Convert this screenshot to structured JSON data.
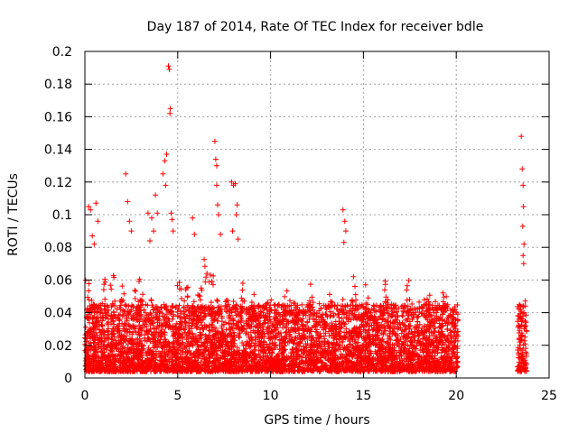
{
  "chart_data": {
    "type": "scatter",
    "title": "Day 187 of 2014, Rate Of TEC Index for receiver bdle",
    "xlabel": "GPS time / hours",
    "ylabel": "ROTI / TECUs",
    "xlim": [
      0,
      25
    ],
    "ylim": [
      0,
      0.2
    ],
    "xticks": [
      "0",
      "5",
      "10",
      "15",
      "20",
      "25"
    ],
    "yticks": [
      "0",
      "0.02",
      "0.04",
      "0.06",
      "0.08",
      "0.1",
      "0.12",
      "0.14",
      "0.16",
      "0.18",
      "0.2"
    ],
    "grid": true,
    "marker": "+",
    "color": "#ff0000",
    "series": [
      {
        "name": "ROTI",
        "coverage_hours": [
          [
            0,
            20.1
          ],
          [
            23.3,
            23.8
          ]
        ],
        "typical_range": [
          0.0,
          0.045
        ],
        "peaks": [
          {
            "x": 0.2,
            "y": 0.105
          },
          {
            "x": 0.3,
            "y": 0.103
          },
          {
            "x": 0.6,
            "y": 0.107
          },
          {
            "x": 0.7,
            "y": 0.096
          },
          {
            "x": 0.4,
            "y": 0.087
          },
          {
            "x": 0.5,
            "y": 0.082
          },
          {
            "x": 2.2,
            "y": 0.125
          },
          {
            "x": 2.3,
            "y": 0.108
          },
          {
            "x": 2.4,
            "y": 0.096
          },
          {
            "x": 2.5,
            "y": 0.09
          },
          {
            "x": 3.4,
            "y": 0.101
          },
          {
            "x": 3.6,
            "y": 0.098
          },
          {
            "x": 3.5,
            "y": 0.084
          },
          {
            "x": 3.8,
            "y": 0.112
          },
          {
            "x": 3.9,
            "y": 0.101
          },
          {
            "x": 3.7,
            "y": 0.09
          },
          {
            "x": 4.2,
            "y": 0.125
          },
          {
            "x": 4.3,
            "y": 0.133
          },
          {
            "x": 4.4,
            "y": 0.137
          },
          {
            "x": 4.35,
            "y": 0.118
          },
          {
            "x": 4.5,
            "y": 0.191
          },
          {
            "x": 4.55,
            "y": 0.189
          },
          {
            "x": 4.6,
            "y": 0.165
          },
          {
            "x": 4.58,
            "y": 0.162
          },
          {
            "x": 4.65,
            "y": 0.101
          },
          {
            "x": 4.7,
            "y": 0.097
          },
          {
            "x": 4.75,
            "y": 0.09
          },
          {
            "x": 5.8,
            "y": 0.098
          },
          {
            "x": 5.9,
            "y": 0.088
          },
          {
            "x": 7.0,
            "y": 0.145
          },
          {
            "x": 7.05,
            "y": 0.134
          },
          {
            "x": 7.1,
            "y": 0.13
          },
          {
            "x": 7.1,
            "y": 0.118
          },
          {
            "x": 7.15,
            "y": 0.106
          },
          {
            "x": 7.2,
            "y": 0.1
          },
          {
            "x": 7.3,
            "y": 0.088
          },
          {
            "x": 7.9,
            "y": 0.12
          },
          {
            "x": 8.0,
            "y": 0.118
          },
          {
            "x": 8.1,
            "y": 0.119
          },
          {
            "x": 8.2,
            "y": 0.106
          },
          {
            "x": 8.15,
            "y": 0.1
          },
          {
            "x": 7.95,
            "y": 0.09
          },
          {
            "x": 8.25,
            "y": 0.085
          },
          {
            "x": 13.9,
            "y": 0.103
          },
          {
            "x": 14.0,
            "y": 0.096
          },
          {
            "x": 14.05,
            "y": 0.09
          },
          {
            "x": 13.95,
            "y": 0.083
          },
          {
            "x": 23.5,
            "y": 0.148
          },
          {
            "x": 23.55,
            "y": 0.128
          },
          {
            "x": 23.6,
            "y": 0.118
          },
          {
            "x": 23.62,
            "y": 0.105
          },
          {
            "x": 23.58,
            "y": 0.093
          },
          {
            "x": 23.65,
            "y": 0.082
          },
          {
            "x": 23.6,
            "y": 0.075
          },
          {
            "x": 23.63,
            "y": 0.07
          }
        ],
        "secondary_bursts": [
          {
            "x": 0.1,
            "y": 0.06
          },
          {
            "x": 1.0,
            "y": 0.058
          },
          {
            "x": 1.5,
            "y": 0.06
          },
          {
            "x": 2.0,
            "y": 0.058
          },
          {
            "x": 2.8,
            "y": 0.06
          },
          {
            "x": 3.0,
            "y": 0.062
          },
          {
            "x": 5.1,
            "y": 0.058
          },
          {
            "x": 5.5,
            "y": 0.06
          },
          {
            "x": 6.2,
            "y": 0.058
          },
          {
            "x": 6.5,
            "y": 0.07
          },
          {
            "x": 6.8,
            "y": 0.065
          },
          {
            "x": 8.5,
            "y": 0.06
          },
          {
            "x": 9.0,
            "y": 0.05
          },
          {
            "x": 10.8,
            "y": 0.053
          },
          {
            "x": 12.2,
            "y": 0.055
          },
          {
            "x": 13.2,
            "y": 0.05
          },
          {
            "x": 14.5,
            "y": 0.06
          },
          {
            "x": 15.2,
            "y": 0.055
          },
          {
            "x": 16.2,
            "y": 0.058
          },
          {
            "x": 17.4,
            "y": 0.06
          },
          {
            "x": 18.5,
            "y": 0.053
          },
          {
            "x": 19.4,
            "y": 0.05
          }
        ]
      }
    ]
  }
}
